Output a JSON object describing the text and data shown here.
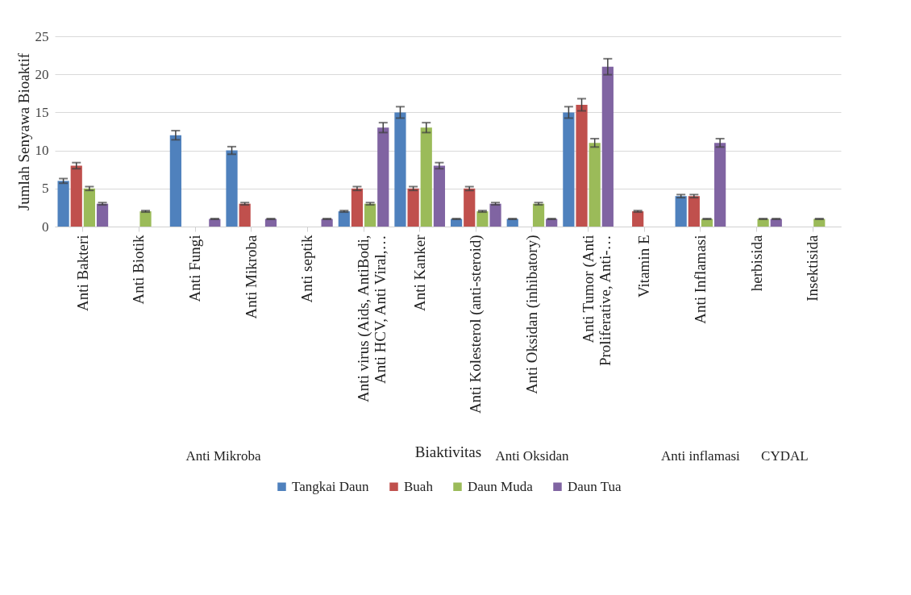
{
  "chart_data": {
    "type": "bar",
    "xlabel": "Biaktivitas",
    "ylabel": "Jumlah Senyawa Bioaktif",
    "categories": [
      "Anti Bakteri",
      "Anti Biotik",
      "Anti Fungi",
      "Anti Mikroba",
      "Anti septik",
      "Anti virus (Aids, AntiBodi, Anti HCV, Anti Viral,…",
      "Anti Kanker",
      "Anti Kolesterol (anti-steroid)",
      "Anti Oksidan (inhibatory)",
      "Anti Tumor (Anti Proliferative, Anti-…",
      "Vitamin E",
      "Anti Inflamasi",
      "herbisida",
      "Insektisida"
    ],
    "series": [
      {
        "name": "Tangkai Daun",
        "color": "#4f81bd",
        "values": [
          6,
          0,
          12,
          10,
          0,
          2,
          15,
          1,
          1,
          15,
          0,
          4,
          0,
          0
        ],
        "errors": [
          0.3,
          null,
          0.6,
          0.5,
          null,
          0.1,
          0.75,
          0.05,
          0.05,
          0.75,
          null,
          0.2,
          null,
          null
        ]
      },
      {
        "name": "Buah",
        "color": "#c0504d",
        "values": [
          8,
          0,
          0,
          3,
          0,
          5,
          5,
          5,
          0,
          16,
          2,
          4,
          0,
          0
        ],
        "errors": [
          0.4,
          null,
          null,
          0.15,
          null,
          0.25,
          0.25,
          0.25,
          null,
          0.8,
          0.1,
          0.2,
          null,
          null
        ]
      },
      {
        "name": "Daun Muda",
        "color": "#9bbb59",
        "values": [
          5,
          2,
          0,
          0,
          0,
          3,
          13,
          2,
          3,
          11,
          0,
          1,
          1,
          1
        ],
        "errors": [
          0.25,
          0.1,
          null,
          null,
          null,
          0.15,
          0.65,
          0.1,
          0.15,
          0.55,
          null,
          0.05,
          0.05,
          0.05
        ]
      },
      {
        "name": "Daun Tua",
        "color": "#8064a2",
        "values": [
          3,
          0,
          1,
          1,
          1,
          13,
          8,
          3,
          1,
          21,
          0,
          11,
          1,
          0
        ],
        "errors": [
          0.15,
          null,
          0.05,
          0.05,
          0.05,
          0.65,
          0.4,
          0.15,
          0.05,
          1.05,
          null,
          0.55,
          0.05,
          null
        ]
      }
    ],
    "annotations": [
      "Anti Mikroba",
      "Anti Oksidan",
      "Anti inflamasi",
      "CYDAL"
    ],
    "ylim": [
      0,
      25
    ],
    "yticks": [
      0,
      5,
      10,
      15,
      20,
      25
    ],
    "grid": "y",
    "legend": "bottom"
  }
}
